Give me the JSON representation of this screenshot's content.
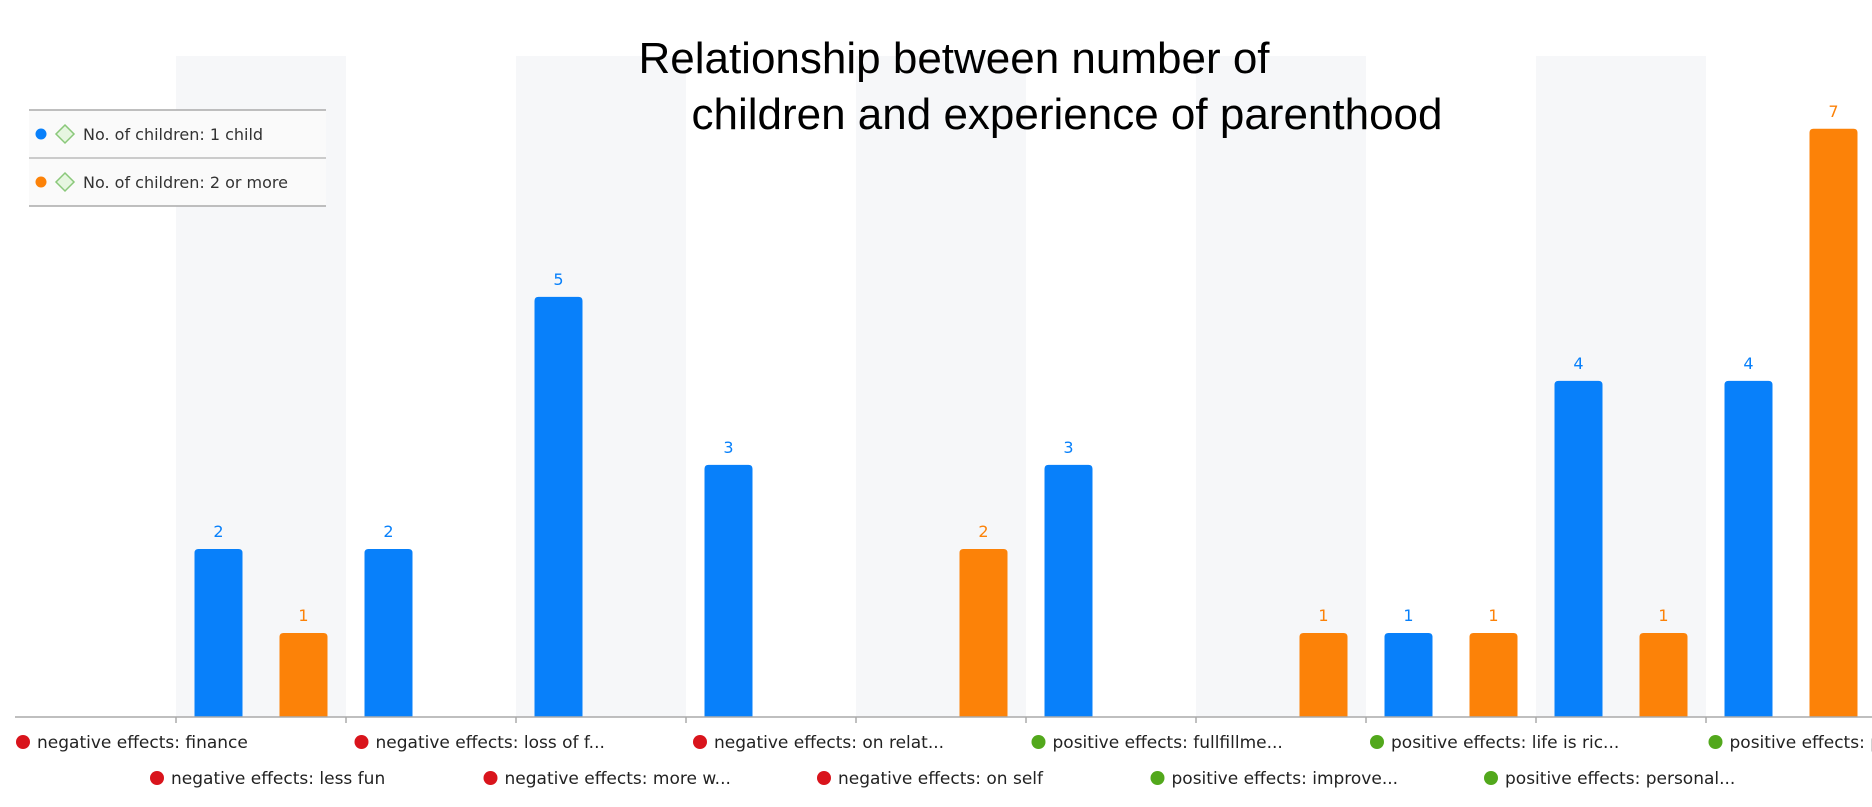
{
  "chart_data": {
    "type": "bar",
    "title_lines": [
      "Relationship between number of",
      "children and experience of parenthood"
    ],
    "categories": [
      "negative effects: finance",
      "negative effects: less fun",
      "negative effects: loss of f...",
      "negative effects: more w...",
      "negative effects: on relat...",
      "negative effects: on self",
      "positive effects: fullfillme...",
      "positive effects: improve...",
      "positive effects: life is ric...",
      "positive effects: personal...",
      "positive effects: positive..."
    ],
    "category_colors": [
      "#d9141c",
      "#d9141c",
      "#d9141c",
      "#d9141c",
      "#d9141c",
      "#d9141c",
      "#52a81c",
      "#52a81c",
      "#52a81c",
      "#52a81c",
      "#52a81c"
    ],
    "series": [
      {
        "name": "No. of children: 1 child",
        "color": "#0880fa",
        "values": [
          2,
          2,
          5,
          3,
          null,
          3,
          null,
          1,
          4,
          4,
          null
        ]
      },
      {
        "name": "No. of children: 2 or more",
        "color": "#fc8208",
        "values": [
          1,
          null,
          null,
          null,
          2,
          null,
          1,
          1,
          1,
          7,
          null
        ]
      }
    ],
    "ylim": [
      0,
      7.2
    ],
    "grid": false,
    "legend_position": "top-left",
    "xlabel": "",
    "ylabel": ""
  }
}
